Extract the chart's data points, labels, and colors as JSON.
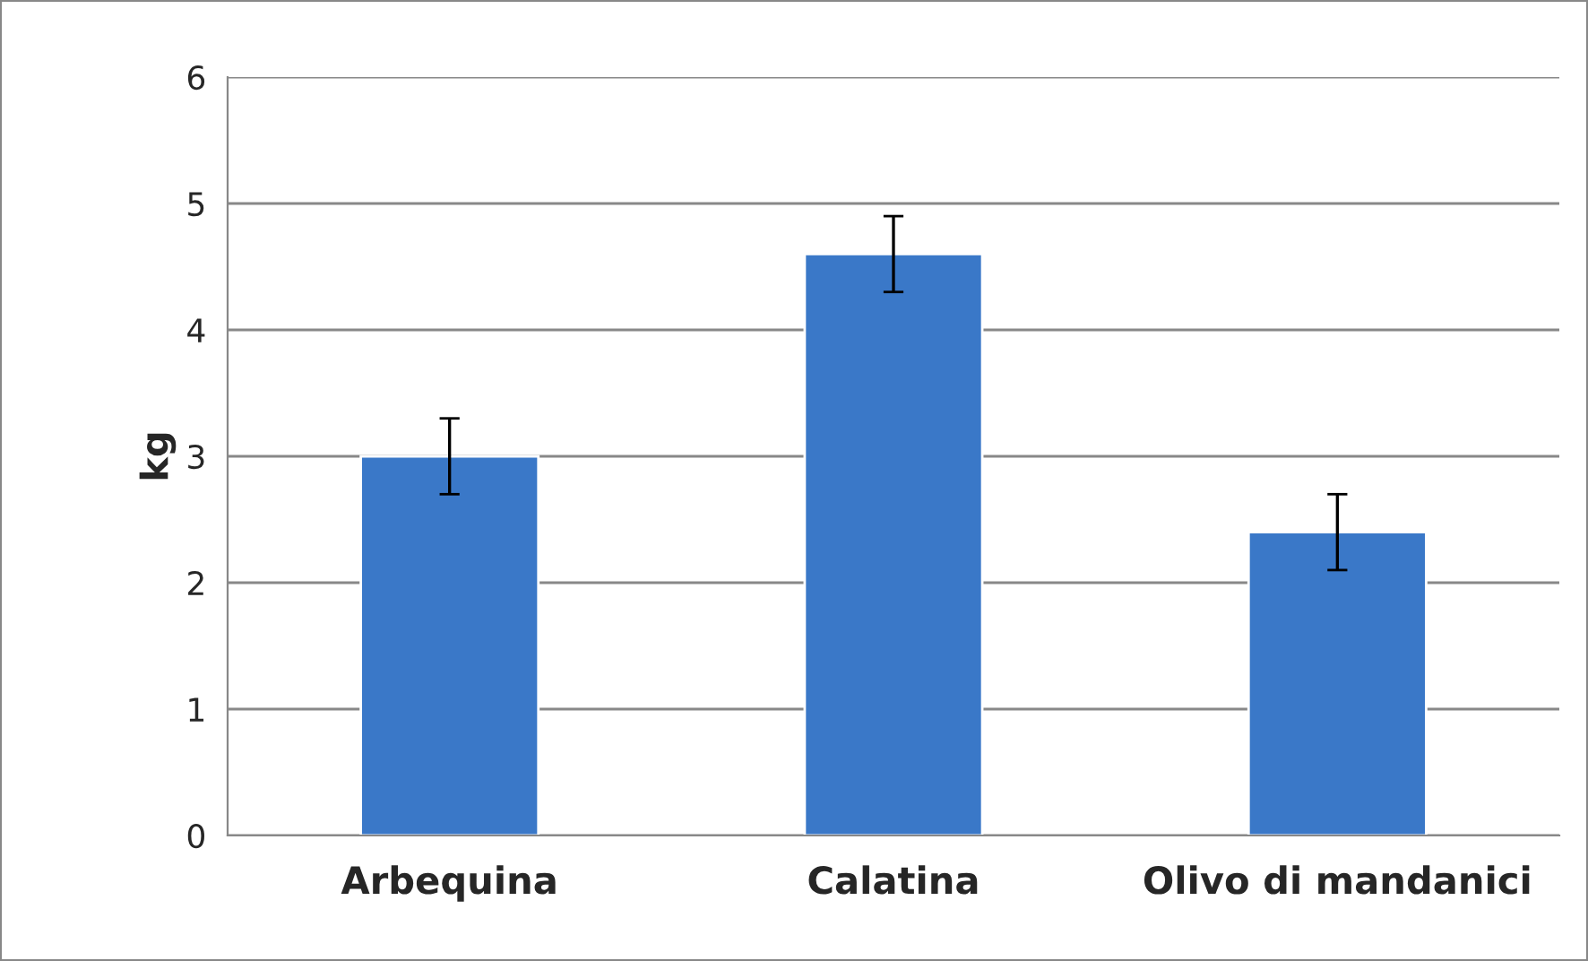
{
  "chart_data": {
    "type": "bar",
    "ylabel": "kg",
    "categories": [
      "Arbequina",
      "Calatina",
      "Olivo di mandanici"
    ],
    "values": [
      3.0,
      4.6,
      2.4
    ],
    "errors": [
      0.3,
      0.3,
      0.3
    ],
    "color": "#3a78c8",
    "ylim": [
      0,
      6
    ],
    "yticks": [
      0,
      1,
      2,
      3,
      4,
      5,
      6
    ],
    "grid": "y",
    "legend": false
  }
}
